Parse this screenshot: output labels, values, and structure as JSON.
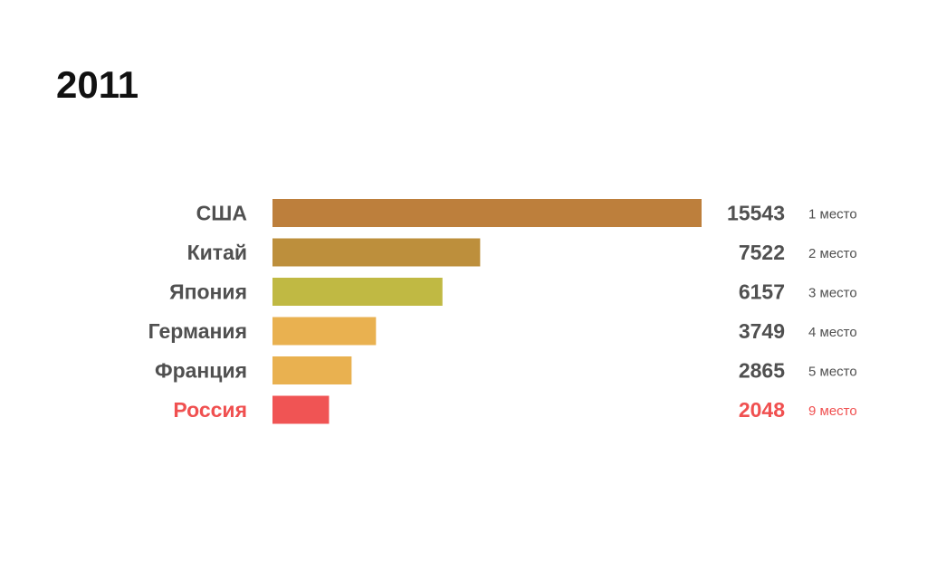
{
  "title": "2011",
  "colors": {
    "default_text": "#505050",
    "highlight_text": "#f05050"
  },
  "chart_data": {
    "type": "bar",
    "orientation": "horizontal",
    "title": "2011",
    "xlabel": "",
    "ylabel": "",
    "xlim": [
      0,
      15543
    ],
    "grid": false,
    "categories": [
      "США",
      "Китай",
      "Япония",
      "Германия",
      "Франция",
      "Россия"
    ],
    "values": [
      15543,
      7522,
      6157,
      3749,
      2865,
      2048
    ],
    "ranks": [
      "1 место",
      "2 место",
      "3 место",
      "4 место",
      "5 место",
      "9 место"
    ],
    "bar_colors": [
      "#bd7f3c",
      "#bd8f3c",
      "#c0b943",
      "#e9b150",
      "#e9b150",
      "#f05454"
    ],
    "highlighted": [
      false,
      false,
      false,
      false,
      false,
      true
    ]
  }
}
